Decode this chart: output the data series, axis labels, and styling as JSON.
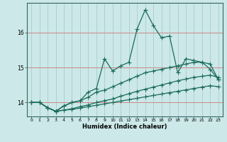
{
  "xlabel": "Humidex (Indice chaleur)",
  "bg_color": "#cce8e8",
  "grid_color": "#aacccc",
  "line_color": "#1a6b5a",
  "xlim": [
    -0.5,
    23.5
  ],
  "ylim": [
    13.6,
    16.85
  ],
  "yticks": [
    14,
    15,
    16
  ],
  "xticks": [
    0,
    1,
    2,
    3,
    4,
    5,
    6,
    7,
    8,
    9,
    10,
    11,
    12,
    13,
    14,
    15,
    16,
    17,
    18,
    19,
    20,
    21,
    22,
    23
  ],
  "series1_x": [
    0,
    1,
    2,
    3,
    4,
    5,
    6,
    7,
    8,
    9,
    10,
    11,
    12,
    13,
    14,
    15,
    16,
    17,
    18,
    19,
    20,
    21,
    22,
    23
  ],
  "series1_y": [
    14.0,
    14.0,
    13.85,
    13.75,
    13.9,
    14.0,
    14.05,
    14.3,
    14.4,
    15.25,
    14.9,
    15.05,
    15.15,
    16.1,
    16.65,
    16.2,
    15.85,
    15.9,
    14.85,
    15.25,
    15.2,
    15.15,
    14.95,
    14.65
  ],
  "series2_x": [
    0,
    1,
    2,
    3,
    4,
    5,
    6,
    7,
    8,
    9,
    10,
    11,
    12,
    13,
    14,
    15,
    16,
    17,
    18,
    19,
    20,
    21,
    22,
    23
  ],
  "series2_y": [
    14.0,
    14.0,
    13.85,
    13.75,
    13.9,
    14.0,
    14.05,
    14.15,
    14.3,
    14.35,
    14.45,
    14.55,
    14.65,
    14.75,
    14.85,
    14.9,
    14.95,
    15.0,
    15.05,
    15.1,
    15.15,
    15.15,
    15.1,
    14.65
  ],
  "series3_x": [
    0,
    1,
    2,
    3,
    4,
    5,
    6,
    7,
    8,
    9,
    10,
    11,
    12,
    13,
    14,
    15,
    16,
    17,
    18,
    19,
    20,
    21,
    22,
    23
  ],
  "series3_y": [
    14.0,
    14.0,
    13.85,
    13.75,
    13.78,
    13.82,
    13.88,
    13.93,
    14.0,
    14.05,
    14.1,
    14.18,
    14.25,
    14.32,
    14.38,
    14.44,
    14.5,
    14.56,
    14.62,
    14.67,
    14.72,
    14.75,
    14.78,
    14.72
  ],
  "series4_x": [
    0,
    1,
    2,
    3,
    4,
    5,
    6,
    7,
    8,
    9,
    10,
    11,
    12,
    13,
    14,
    15,
    16,
    17,
    18,
    19,
    20,
    21,
    22,
    23
  ],
  "series4_y": [
    14.0,
    14.0,
    13.85,
    13.75,
    13.78,
    13.8,
    13.84,
    13.88,
    13.92,
    13.96,
    14.0,
    14.04,
    14.08,
    14.12,
    14.16,
    14.2,
    14.24,
    14.28,
    14.32,
    14.36,
    14.4,
    14.44,
    14.48,
    14.45
  ]
}
